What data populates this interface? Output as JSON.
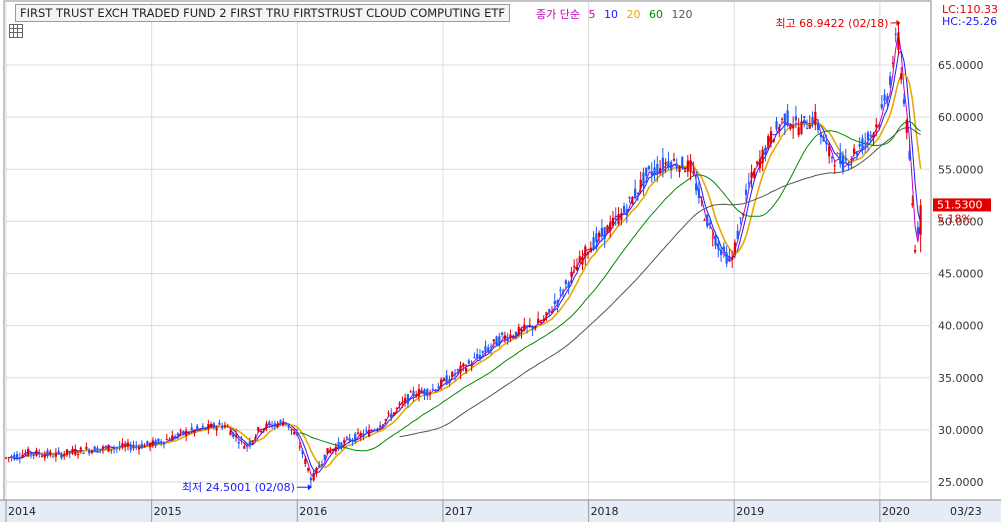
{
  "window": {
    "title": "FIRST TRUST EXCH TRADED FUND 2 FIRST TRU  FIRTSTRUST CLOUD COMPUTING ETF",
    "legend_label": "종가 단순",
    "ma_periods": [
      "5",
      "10",
      "20",
      "60",
      "120"
    ],
    "ma_colors": [
      "#c000c0",
      "#1a1aff",
      "#e8a800",
      "#008a00",
      "#555555"
    ],
    "lc_label": "LC:110.33",
    "hc_label": "HC:-25.26",
    "current_price_label": "51.5300",
    "current_change_label": "5.18%",
    "last_x_label": "03/23",
    "high_annotation": "최고 68.9422 (02/18)",
    "low_annotation": "최저 24.5001 (02/08)"
  },
  "chart_data": {
    "type": "candlestick",
    "x": [
      "2014",
      "2015",
      "2016",
      "2017",
      "2018",
      "2019",
      "2020",
      "03/23"
    ],
    "y_ticks": [
      "25.0000",
      "30.0000",
      "35.0000",
      "40.0000",
      "45.0000",
      "50.0000",
      "55.0000",
      "60.0000",
      "65.0000"
    ],
    "ylim": [
      23,
      70
    ],
    "keypoints": [
      [
        2014.0,
        27.3
      ],
      [
        2014.15,
        27.8
      ],
      [
        2014.35,
        27.6
      ],
      [
        2014.55,
        28.1
      ],
      [
        2014.75,
        28.3
      ],
      [
        2015.0,
        28.6
      ],
      [
        2015.25,
        29.8
      ],
      [
        2015.5,
        30.5
      ],
      [
        2015.65,
        28.4
      ],
      [
        2015.75,
        30.2
      ],
      [
        2015.92,
        30.8
      ],
      [
        2016.0,
        29.2
      ],
      [
        2016.1,
        25.2
      ],
      [
        2016.2,
        27.8
      ],
      [
        2016.35,
        29.0
      ],
      [
        2016.5,
        29.8
      ],
      [
        2016.65,
        31.5
      ],
      [
        2016.8,
        33.5
      ],
      [
        2016.92,
        33.8
      ],
      [
        2017.0,
        34.5
      ],
      [
        2017.2,
        36.5
      ],
      [
        2017.4,
        38.8
      ],
      [
        2017.55,
        39.5
      ],
      [
        2017.7,
        40.5
      ],
      [
        2017.85,
        44.0
      ],
      [
        2018.0,
        47.5
      ],
      [
        2018.1,
        48.8
      ],
      [
        2018.25,
        51.0
      ],
      [
        2018.4,
        54.5
      ],
      [
        2018.55,
        55.8
      ],
      [
        2018.7,
        55.2
      ],
      [
        2018.8,
        50.5
      ],
      [
        2018.9,
        47.5
      ],
      [
        2018.98,
        46.0
      ],
      [
        2019.1,
        53.5
      ],
      [
        2019.25,
        58.0
      ],
      [
        2019.35,
        60.0
      ],
      [
        2019.45,
        59.0
      ],
      [
        2019.55,
        60.0
      ],
      [
        2019.65,
        56.5
      ],
      [
        2019.75,
        55.6
      ],
      [
        2019.85,
        57.0
      ],
      [
        2019.95,
        58.5
      ],
      [
        2020.0,
        60.0
      ],
      [
        2020.05,
        62.0
      ],
      [
        2020.12,
        68.0
      ],
      [
        2020.2,
        57.0
      ],
      [
        2020.24,
        47.0
      ],
      [
        2020.28,
        51.5
      ]
    ],
    "ma_ranges": {
      "20": 2014.0,
      "60": 2016.0,
      "120": 2016.7
    },
    "high": {
      "date": "02/18",
      "value": 68.9422
    },
    "low": {
      "date": "02/08",
      "value": 24.5001
    },
    "last": 51.53,
    "grid": true
  }
}
